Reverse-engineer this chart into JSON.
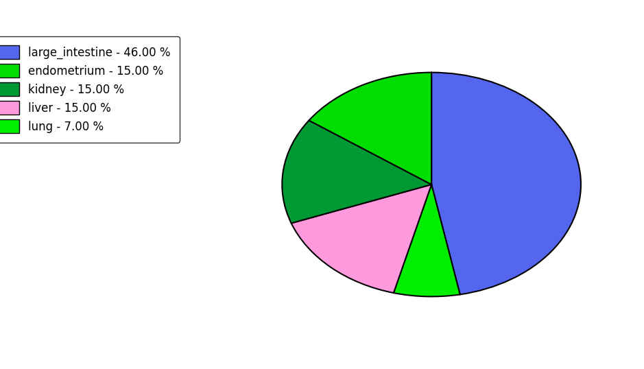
{
  "legend_labels": [
    "large_intestine - 46.00 %",
    "endometrium - 15.00 %",
    "kidney - 15.00 %",
    "liver - 15.00 %",
    "lung - 7.00 %"
  ],
  "legend_colors": [
    "#5566ee",
    "#00dd00",
    "#009933",
    "#ff99dd",
    "#00ee00"
  ],
  "pie_sizes": [
    46.0,
    7.0,
    15.0,
    15.0,
    15.0
  ],
  "pie_colors": [
    "#5566ee",
    "#00ee00",
    "#ff99dd",
    "#009933",
    "#00dd00"
  ],
  "background_color": "#ffffff",
  "figsize": [
    9.39,
    5.38
  ],
  "dpi": 100
}
